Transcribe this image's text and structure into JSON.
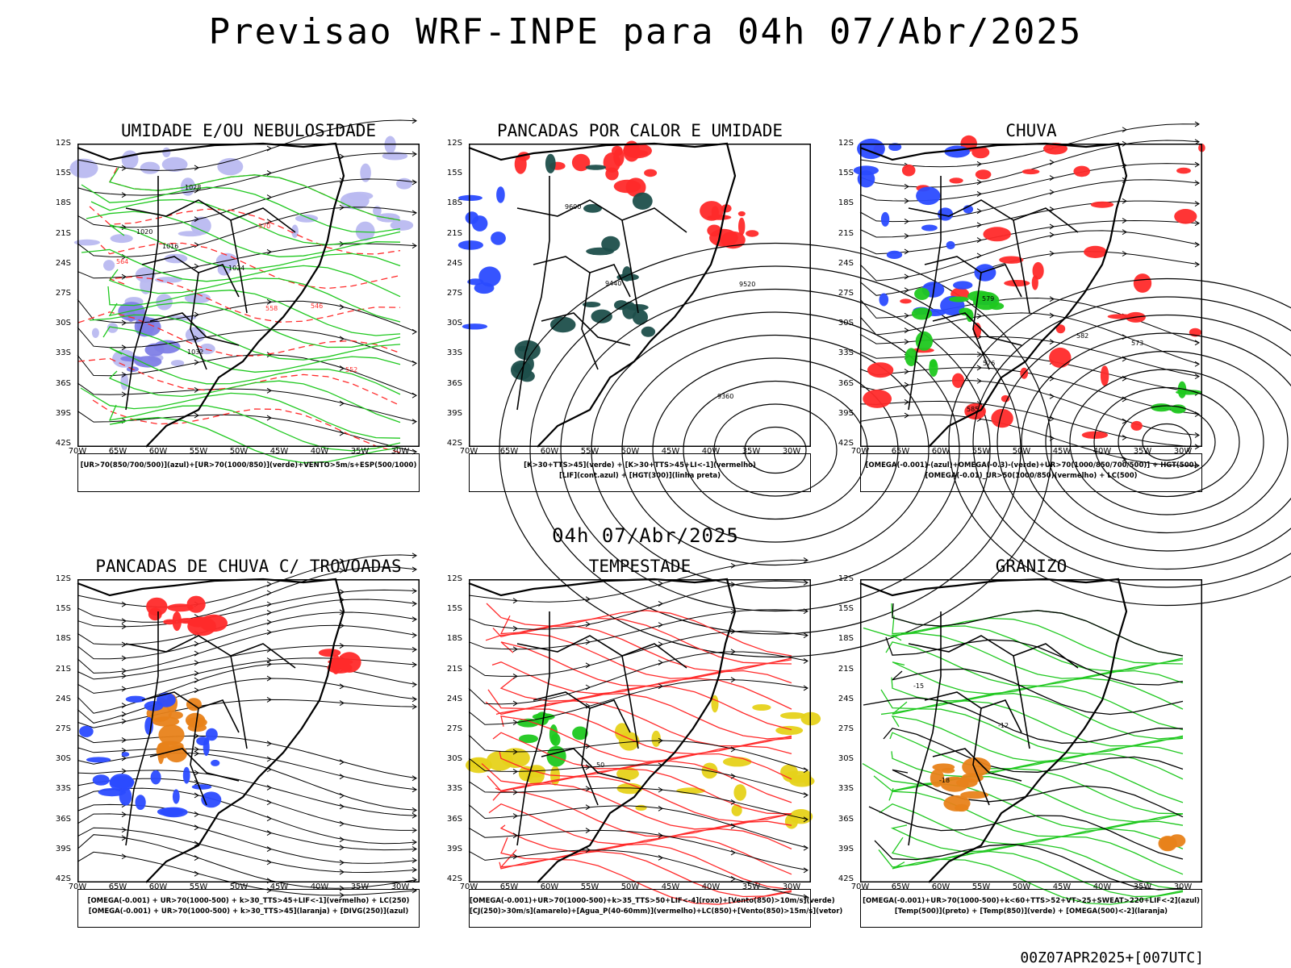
{
  "title": "Previsao WRF-INPE  para 04h 07/Abr/2025",
  "subtitle": "04h 07/Abr/2025",
  "footer": "00Z07APR2025+[007UTC]",
  "lat_labels": [
    "12S",
    "15S",
    "18S",
    "21S",
    "24S",
    "27S",
    "30S",
    "33S",
    "36S",
    "39S",
    "42S"
  ],
  "lon_labels": [
    "70W",
    "65W",
    "60W",
    "55W",
    "50W",
    "45W",
    "40W",
    "35W",
    "30W"
  ],
  "colors": {
    "green": "#1fc81f",
    "blue": "#2b4bff",
    "red": "#ff2a2a",
    "lavender": "#b9b9f0",
    "dark_teal": "#1d4f4b",
    "orange": "#e8821a",
    "yellow": "#e6d21a",
    "purple": "#7d3cc8"
  },
  "panels": [
    {
      "title": "UMIDADE E/OU NEBULOSIDADE",
      "caption": [
        "[UR>70(850/700/500)](azul)+[UR>70(1000/850)](verde)+VENTO>5m/s+ESP(500/1000)"
      ],
      "labels": [
        "1016",
        "1020",
        "1024",
        "1028",
        "1032",
        "570",
        "564",
        "558",
        "552",
        "546"
      ]
    },
    {
      "title": "PANCADAS POR CALOR E UMIDADE",
      "caption": [
        "[K>30+TTS>45](verde) + [K>30+TTS>45+LI<-1](vermelho)",
        "[LIF](cont.azul) + [HGT(300)](linha preta)"
      ],
      "labels": [
        "9600",
        "9520",
        "9440",
        "9360"
      ]
    },
    {
      "title": "CHUVA",
      "caption": [
        "[OMEGA(-0.001)-(azul)+OMEGA(-0.3)-(verde)+UR>70(1000/850/700/500)] + HGT(500)",
        "[OMEGA(-0.01)_UR>50(1000/850)(vermelho) + LC(500)"
      ],
      "labels": [
        "585",
        "582",
        "579",
        "576",
        "573"
      ]
    },
    {
      "title": "PANCADAS DE CHUVA C/ TROVOADAS",
      "caption": [
        "[OMEGA(-0.001) + UR>70(1000-500) + k>30_TTS>45+LIF<-1](vermelho) + LC(250)",
        "[OMEGA(-0.001) + UR>70(1000-500) + k>30_TTS>45](laranja) + [DIVG(250)](azul)"
      ],
      "labels": []
    },
    {
      "title": "TEMPESTADE",
      "caption": [
        "[OMEGA(-0.001)+UR>70(1000-500)+k>35_TTS>50+LIF<-4](roxo)+[Vento(850)>10m/s](verde)",
        "[CJ(250)>30m/s](amarelo)+[Agua_P(40-60mm)](vermelho)+LC(850)+[Vento(850)>15m/s](vetor)"
      ],
      "labels": [
        "50"
      ]
    },
    {
      "title": "GRANIZO",
      "caption": [
        "[OMEGA(-0.001)+UR>70(1000-500)+k<60+TTS>52+VT>25+SWEAT>220+LIF<-2](azul)",
        "[Temp(500)](preto) + [Temp(850)](verde) + [OMEGA(500)<-2](laranja)"
      ],
      "labels": [
        "-12",
        "-15",
        "-18"
      ]
    }
  ]
}
